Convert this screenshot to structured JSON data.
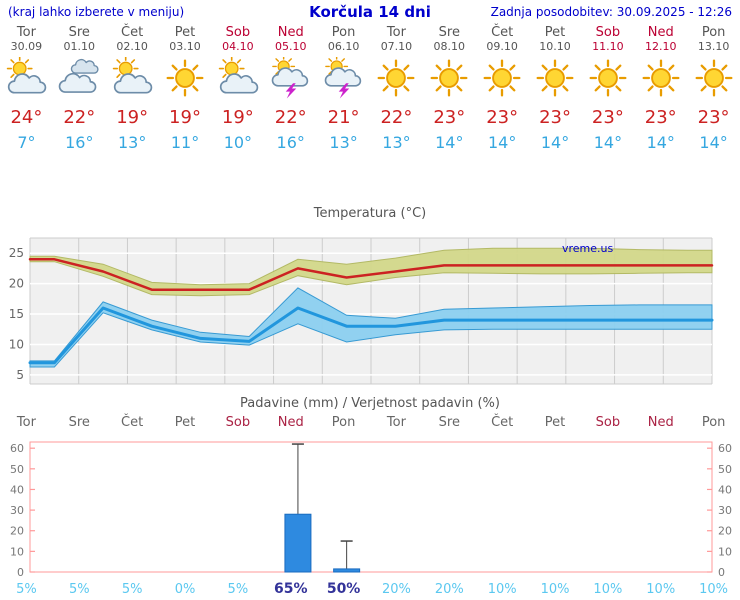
{
  "header": {
    "hint": "(kraj lahko izberete v meniju)",
    "title": "Korčula 14 dni",
    "last_updated": "Zadnja posodobitev: 30.09.2025 - 12:26"
  },
  "watermark": "vreme.us",
  "colors": {
    "link_blue": "#0000cc",
    "weekend_red": "#bb0033",
    "tmax_red": "#cc2222",
    "tmin_blue": "#35a7e0",
    "bar_blue": "#2e8ae0",
    "percent_light": "#5bc8f0",
    "percent_strong": "#333399"
  },
  "days": [
    {
      "name": "Tor",
      "date": "30.09",
      "icon": "partly-cloudy",
      "tmax": "24°",
      "tmin": "7°",
      "weekend": false
    },
    {
      "name": "Sre",
      "date": "01.10",
      "icon": "cloudy",
      "tmax": "22°",
      "tmin": "16°",
      "weekend": false
    },
    {
      "name": "Čet",
      "date": "02.10",
      "icon": "partly-cloudy",
      "tmax": "19°",
      "tmin": "13°",
      "weekend": false
    },
    {
      "name": "Pet",
      "date": "03.10",
      "icon": "sunny",
      "tmax": "19°",
      "tmin": "11°",
      "weekend": false
    },
    {
      "name": "Sob",
      "date": "04.10",
      "icon": "partly-cloudy",
      "tmax": "19°",
      "tmin": "10°",
      "weekend": true
    },
    {
      "name": "Ned",
      "date": "05.10",
      "icon": "thunderstorm",
      "tmax": "22°",
      "tmin": "16°",
      "weekend": true
    },
    {
      "name": "Pon",
      "date": "06.10",
      "icon": "thunderstorm",
      "tmax": "21°",
      "tmin": "13°",
      "weekend": false
    },
    {
      "name": "Tor",
      "date": "07.10",
      "icon": "sunny",
      "tmax": "22°",
      "tmin": "13°",
      "weekend": false
    },
    {
      "name": "Sre",
      "date": "08.10",
      "icon": "sunny",
      "tmax": "23°",
      "tmin": "14°",
      "weekend": false
    },
    {
      "name": "Čet",
      "date": "09.10",
      "icon": "sunny",
      "tmax": "23°",
      "tmin": "14°",
      "weekend": false
    },
    {
      "name": "Pet",
      "date": "10.10",
      "icon": "sunny",
      "tmax": "23°",
      "tmin": "14°",
      "weekend": false
    },
    {
      "name": "Sob",
      "date": "11.10",
      "icon": "sunny",
      "tmax": "23°",
      "tmin": "14°",
      "weekend": true
    },
    {
      "name": "Ned",
      "date": "12.10",
      "icon": "sunny",
      "tmax": "23°",
      "tmin": "14°",
      "weekend": true
    },
    {
      "name": "Pon",
      "date": "13.10",
      "icon": "sunny",
      "tmax": "23°",
      "tmin": "14°",
      "weekend": false
    }
  ],
  "chart_data": [
    {
      "type": "line",
      "title": "Temperatura (°C)",
      "categories": [
        "Tor",
        "Sre",
        "Čet",
        "Pet",
        "Sob",
        "Ned",
        "Pon",
        "Tor",
        "Sre",
        "Čet",
        "Pet",
        "Sob",
        "Ned",
        "Pon"
      ],
      "ylim": [
        3.5,
        27.5
      ],
      "yticks": [
        5,
        10,
        15,
        20,
        25
      ],
      "grid": true,
      "legend": "none",
      "series": [
        {
          "name": "max-temp",
          "color": "#cc2222",
          "width": 2.5,
          "values": [
            24,
            22,
            19,
            19,
            19,
            22.5,
            21,
            22,
            23,
            23,
            23,
            23,
            23,
            23
          ]
        },
        {
          "name": "min-temp",
          "color": "#2196dd",
          "width": 3,
          "values": [
            7,
            16,
            13,
            11,
            10.5,
            16,
            13,
            13,
            14,
            14,
            14,
            14,
            14,
            14
          ]
        }
      ],
      "bands": [
        {
          "name": "max-temp-range",
          "fill": "#d3d88a",
          "edge": "#b0b75e",
          "upper": [
            24.5,
            23.2,
            20.2,
            19.8,
            20.0,
            24.0,
            23.2,
            24.2,
            25.5,
            25.8,
            25.8,
            25.8,
            25.6,
            25.5
          ],
          "lower": [
            23.6,
            21.2,
            18.2,
            18.0,
            18.2,
            21.3,
            19.8,
            21.0,
            21.8,
            21.7,
            21.6,
            21.6,
            21.7,
            21.8
          ]
        },
        {
          "name": "min-temp-range",
          "fill": "#8cd0f0",
          "edge": "#2e96d2",
          "upper": [
            7.3,
            17.0,
            14.0,
            12.0,
            11.3,
            19.3,
            14.8,
            14.3,
            15.8,
            16.0,
            16.2,
            16.4,
            16.5,
            16.5
          ],
          "lower": [
            6.3,
            15.2,
            12.4,
            10.4,
            9.9,
            13.4,
            10.4,
            11.6,
            12.4,
            12.5,
            12.5,
            12.5,
            12.5,
            12.5
          ]
        }
      ]
    },
    {
      "type": "bar",
      "title": "Padavine (mm) / Verjetnost padavin (%)",
      "categories": [
        "Tor",
        "Sre",
        "Čet",
        "Pet",
        "Sob",
        "Ned",
        "Pon",
        "Tor",
        "Sre",
        "Čet",
        "Pet",
        "Sob",
        "Ned",
        "Pon"
      ],
      "ylim": [
        0,
        63
      ],
      "yticks": [
        0,
        10,
        20,
        30,
        40,
        50,
        60
      ],
      "precip_mm": [
        0,
        0,
        0,
        0,
        0,
        28,
        1.5,
        0,
        0,
        0,
        0,
        0,
        0,
        0
      ],
      "precip_max_mm": [
        0,
        0,
        0,
        0,
        0,
        62,
        15,
        0,
        0,
        0,
        0,
        0,
        0,
        0
      ],
      "probability_pct": [
        "5%",
        "5%",
        "5%",
        "0%",
        "5%",
        "65%",
        "50%",
        "20%",
        "20%",
        "10%",
        "10%",
        "10%",
        "10%",
        "10%"
      ],
      "probability_emphasis": [
        false,
        false,
        false,
        false,
        false,
        true,
        true,
        false,
        false,
        false,
        false,
        false,
        false,
        false
      ]
    }
  ]
}
